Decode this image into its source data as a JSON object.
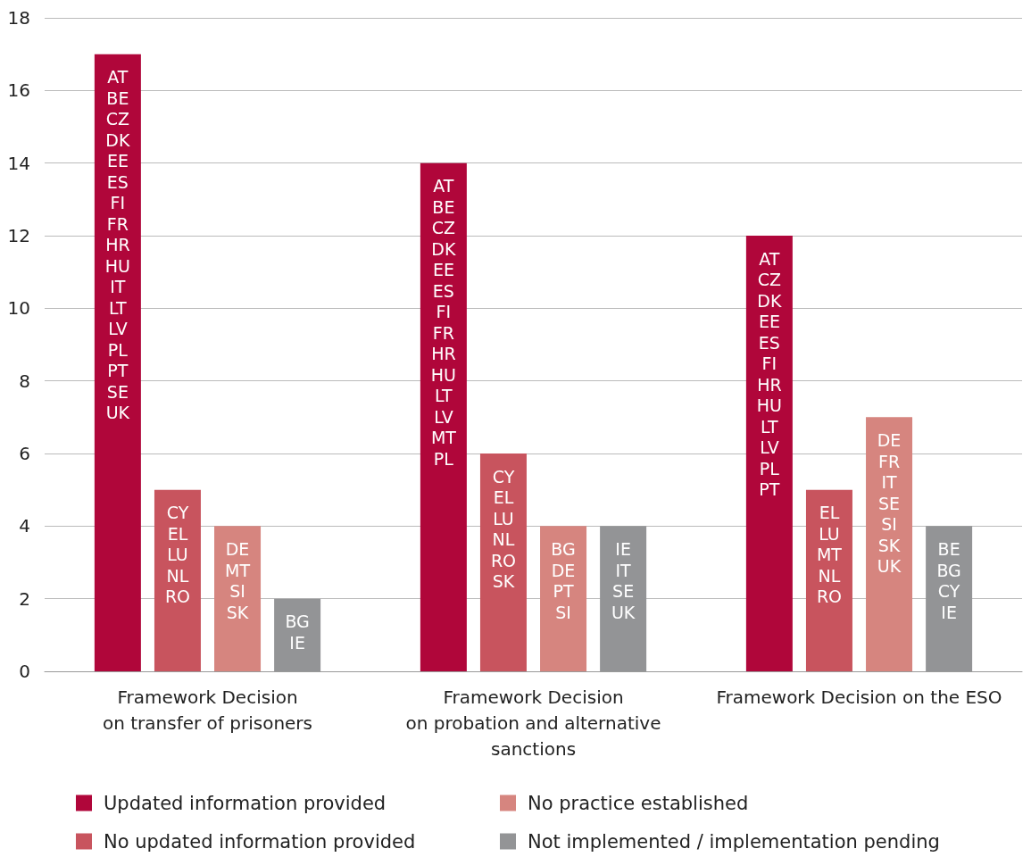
{
  "chart_data": {
    "type": "bar",
    "categories": [
      "Framework Decision\non transfer of prisoners",
      "Framework Decision\non probation and alternative\nsanctions",
      "Framework Decision on the ESO"
    ],
    "series": [
      {
        "name": "Updated information provided",
        "color": "#b0063a",
        "values": [
          17,
          14,
          12
        ],
        "value_labels": [
          "AT\nBE\nCZ\nDK\nEE\nES\nFI\nFR\nHR\nHU\nIT\nLT\nLV\nPL\nPT\nSE\nUK",
          "AT\nBE\nCZ\nDK\nEE\nES\nFI\nFR\nHR\nHU\nLT\nLV\nMT\nPL",
          "AT\nCZ\nDK\nEE\nES\nFI\nHR\nHU\nLT\nLV\nPL\nPT"
        ]
      },
      {
        "name": "No updated information provided",
        "color": "#c8545e",
        "values": [
          5,
          6,
          5
        ],
        "value_labels": [
          "CY\nEL\nLU\nNL\nRO",
          "CY\nEL\nLU\nNL\nRO\nSK",
          "EL\nLU\nMT\nNL\nRO"
        ]
      },
      {
        "name": "No practice established",
        "color": "#d6857f",
        "values": [
          4,
          4,
          7
        ],
        "value_labels": [
          "DE\nMT\nSI\nSK",
          "BG\nDE\nPT\nSI",
          "DE\nFR\nIT\nSE\nSI\nSK\nUK"
        ]
      },
      {
        "name": "Not implemented / implementation pending",
        "color": "#939496",
        "values": [
          2,
          4,
          4
        ],
        "value_labels": [
          "BG\nIE",
          "IE\nIT\nSE\nUK",
          "BE\nBG\nCY\nIE"
        ]
      }
    ],
    "ylim": [
      0,
      18
    ],
    "yticks": [
      0,
      2,
      4,
      6,
      8,
      10,
      12,
      14,
      16,
      18
    ],
    "grid": "y",
    "legend": "bottom"
  }
}
